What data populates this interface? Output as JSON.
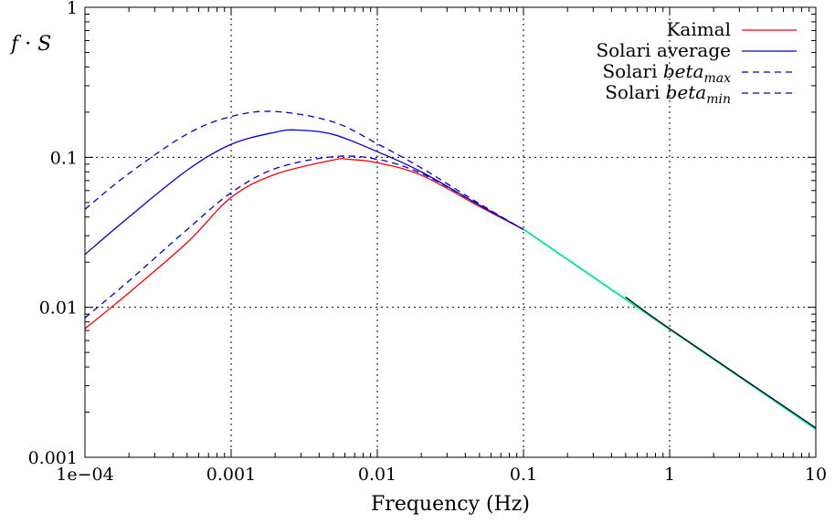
{
  "chart_data": {
    "type": "line",
    "xlabel": "Frequency (Hz)",
    "ylabel_parts": [
      "f",
      " · ",
      "S"
    ],
    "x_scale": "log",
    "y_scale": "log",
    "xlim": [
      0.0001,
      10
    ],
    "ylim": [
      0.001,
      1
    ],
    "grid": true,
    "legend_position": "top-right",
    "x_ticks": [
      {
        "value": 0.0001,
        "label": "1e−04"
      },
      {
        "value": 0.001,
        "label": "0.001"
      },
      {
        "value": 0.01,
        "label": "0.01"
      },
      {
        "value": 0.1,
        "label": "0.1"
      },
      {
        "value": 1,
        "label": "1"
      },
      {
        "value": 10,
        "label": "10"
      }
    ],
    "y_ticks": [
      {
        "value": 0.001,
        "label": "0.001"
      },
      {
        "value": 0.01,
        "label": "0.01"
      },
      {
        "value": 0.1,
        "label": "0.1"
      },
      {
        "value": 1,
        "label": "1"
      }
    ],
    "series": [
      {
        "key": "kaimal",
        "name": "Kaimal",
        "color": "#ff0000",
        "dashed": false,
        "x": [
          0.0001,
          0.0002,
          0.0005,
          0.001,
          0.002,
          0.005,
          0.0063,
          0.01,
          0.02,
          0.05,
          0.1
        ],
        "y": [
          0.0072,
          0.0125,
          0.027,
          0.054,
          0.077,
          0.096,
          0.097,
          0.092,
          0.076,
          0.047,
          0.033
        ]
      },
      {
        "key": "solari_avg",
        "name": "Solari average",
        "color": "#0000cc",
        "dashed": false,
        "x": [
          0.0001,
          0.0002,
          0.0005,
          0.001,
          0.002,
          0.0028,
          0.005,
          0.01,
          0.02,
          0.05,
          0.1
        ],
        "y": [
          0.0225,
          0.04,
          0.082,
          0.122,
          0.147,
          0.152,
          0.142,
          0.109,
          0.08,
          0.048,
          0.033
        ]
      },
      {
        "key": "solari_max",
        "name_prefix": "Solari ",
        "name_italic": "beta",
        "name_sub": "max",
        "color": "#0000cc",
        "dashed": true,
        "x": [
          0.0001,
          0.0002,
          0.0005,
          0.001,
          0.002,
          0.005,
          0.01,
          0.02,
          0.05,
          0.1
        ],
        "y": [
          0.045,
          0.078,
          0.143,
          0.187,
          0.202,
          0.172,
          0.123,
          0.085,
          0.049,
          0.033
        ]
      },
      {
        "key": "solari_min",
        "name_prefix": "Solari ",
        "name_italic": "beta",
        "name_sub": "min",
        "color": "#0000cc",
        "dashed": true,
        "x": [
          0.0001,
          0.0002,
          0.0005,
          0.001,
          0.002,
          0.005,
          0.01,
          0.02,
          0.05,
          0.1
        ],
        "y": [
          0.0085,
          0.015,
          0.033,
          0.058,
          0.084,
          0.101,
          0.097,
          0.078,
          0.048,
          0.033
        ]
      },
      {
        "key": "extension_green",
        "color": "#00ff00",
        "dashed": false,
        "x": [
          0.1,
          1,
          10
        ],
        "y": [
          0.033,
          0.0071,
          0.00155
        ]
      },
      {
        "key": "extension_cyan",
        "color": "#00dddd",
        "dashed": false,
        "x": [
          0.1,
          1,
          10
        ],
        "y": [
          0.0333,
          0.00715,
          0.00153
        ]
      },
      {
        "key": "extension_black",
        "color": "#000000",
        "dashed": false,
        "x": [
          0.5,
          1,
          10
        ],
        "y": [
          0.0117,
          0.0072,
          0.00157
        ]
      }
    ]
  }
}
